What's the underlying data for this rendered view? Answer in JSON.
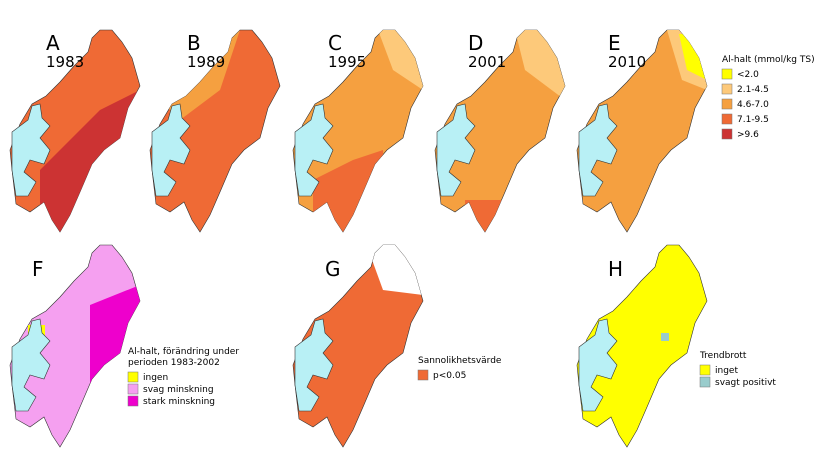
{
  "panels": [
    {
      "letter": "A",
      "year": "1983"
    },
    {
      "letter": "B",
      "year": "1989"
    },
    {
      "letter": "C",
      "year": "1995"
    },
    {
      "letter": "D",
      "year": "2001"
    },
    {
      "letter": "E",
      "year": "2010"
    },
    {
      "letter": "F"
    },
    {
      "letter": "G"
    },
    {
      "letter": "H"
    }
  ],
  "legend_al": {
    "title": "Al-halt (mmol/kg TS)",
    "items": [
      {
        "label": "<2.0",
        "color": "#ffff00"
      },
      {
        "label": "2.1-4.5",
        "color": "#fdc97a"
      },
      {
        "label": "4.6-7.0",
        "color": "#f5a040"
      },
      {
        "label": "7.1-9.5",
        "color": "#ef6a35"
      },
      {
        "label": ">9.6",
        "color": "#cc3333"
      }
    ]
  },
  "legend_change": {
    "title": [
      "Al-halt, förändring under",
      "perioden 1983-2002"
    ],
    "items": [
      {
        "label": "ingen",
        "color": "#ffff00"
      },
      {
        "label": "svag minskning",
        "color": "#f5a0f0"
      },
      {
        "label": "stark minskning",
        "color": "#ee00cc"
      }
    ]
  },
  "legend_p": {
    "title": "Sannolikhetsvärde",
    "items": [
      {
        "label": "p<0.05",
        "color": "#ef6a35"
      }
    ]
  },
  "legend_trend": {
    "title": "Trendbrott",
    "items": [
      {
        "label": "inget",
        "color": "#ffff00"
      },
      {
        "label": "svagt positivt",
        "color": "#99cccc"
      }
    ]
  }
}
